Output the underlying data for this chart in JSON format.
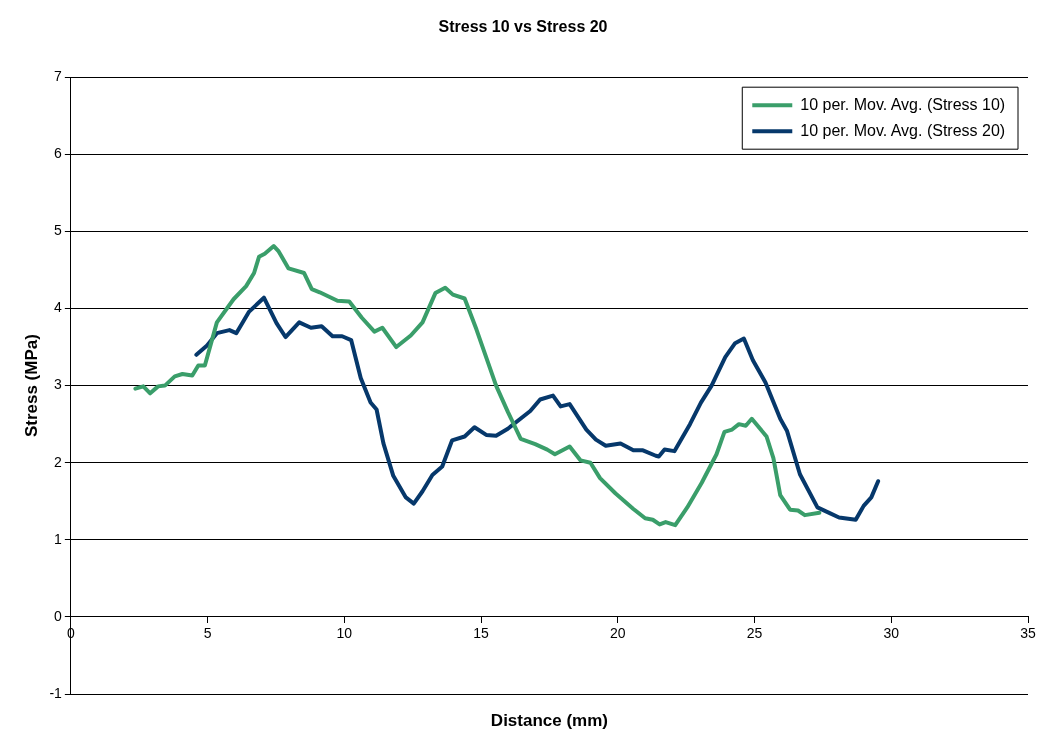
{
  "chart_data": {
    "type": "line",
    "title": "Stress 10 vs Stress 20",
    "xlabel": "Distance (mm)",
    "ylabel": "Stress (MPa)",
    "xlim": [
      0,
      35
    ],
    "xticks": [
      0,
      5,
      10,
      15,
      20,
      25,
      30,
      35
    ],
    "ylim": [
      -1,
      7
    ],
    "yticks": [
      -1,
      0,
      1,
      2,
      3,
      4,
      5,
      6,
      7
    ],
    "grid": "y",
    "legend": "top right",
    "marker": "none",
    "line_style": "solid",
    "series": [
      {
        "name": "10 per. Mov. Avg. (Stress 10)",
        "color": "#3a9e6a",
        "x": [
          2.36,
          2.65,
          2.9,
          3.19,
          3.44,
          3.8,
          4.08,
          4.44,
          4.66,
          4.9,
          5.34,
          5.95,
          6.41,
          6.7,
          6.88,
          7.09,
          7.42,
          7.6,
          7.96,
          8.53,
          8.81,
          9.1,
          9.75,
          10.18,
          10.64,
          11.1,
          11.39,
          11.9,
          12.43,
          12.86,
          13.33,
          13.69,
          13.97,
          14.4,
          14.83,
          15.55,
          15.98,
          16.45,
          16.98,
          17.42,
          17.7,
          18.24,
          18.64,
          19.0,
          19.35,
          19.92,
          20.57,
          21.0,
          21.28,
          21.53,
          21.75,
          22.1,
          22.54,
          23.07,
          23.61,
          23.9,
          24.18,
          24.43,
          24.68,
          24.9,
          25.44,
          25.69,
          25.94,
          26.3,
          26.59,
          26.84,
          27.37
        ],
        "values": [
          2.96,
          2.99,
          2.9,
          2.99,
          3.0,
          3.12,
          3.15,
          3.13,
          3.26,
          3.26,
          3.82,
          4.12,
          4.29,
          4.46,
          4.67,
          4.71,
          4.81,
          4.74,
          4.52,
          4.46,
          4.25,
          4.21,
          4.1,
          4.09,
          3.88,
          3.7,
          3.75,
          3.5,
          3.65,
          3.82,
          4.2,
          4.27,
          4.18,
          4.13,
          3.73,
          3.0,
          2.66,
          2.31,
          2.24,
          2.17,
          2.11,
          2.21,
          2.03,
          2.0,
          1.8,
          1.6,
          1.4,
          1.28,
          1.26,
          1.2,
          1.23,
          1.19,
          1.42,
          1.74,
          2.11,
          2.4,
          2.43,
          2.5,
          2.48,
          2.57,
          2.34,
          2.06,
          1.58,
          1.39,
          1.38,
          1.32,
          1.35
        ]
      },
      {
        "name": "10 per. Mov. Avg. (Stress 20)",
        "color": "#06386b",
        "x": [
          4.59,
          4.98,
          5.34,
          5.8,
          6.05,
          6.52,
          7.06,
          7.52,
          7.85,
          8.35,
          8.78,
          9.17,
          9.57,
          9.92,
          10.25,
          10.6,
          10.96,
          11.18,
          11.43,
          11.79,
          12.25,
          12.54,
          12.86,
          13.22,
          13.58,
          13.94,
          14.4,
          14.76,
          15.19,
          15.55,
          15.98,
          16.8,
          17.16,
          17.63,
          17.91,
          18.24,
          18.85,
          19.2,
          19.56,
          20.1,
          20.57,
          20.92,
          21.39,
          21.5,
          21.71,
          22.07,
          22.64,
          23.04,
          23.43,
          23.93,
          24.29,
          24.61,
          24.94,
          25.4,
          25.94,
          26.19,
          26.66,
          27.3,
          27.73,
          28.09,
          28.7,
          28.99,
          29.27,
          29.52
        ],
        "values": [
          3.4,
          3.52,
          3.68,
          3.72,
          3.68,
          3.96,
          4.14,
          3.81,
          3.63,
          3.82,
          3.75,
          3.77,
          3.64,
          3.64,
          3.59,
          3.1,
          2.78,
          2.69,
          2.25,
          1.83,
          1.55,
          1.47,
          1.63,
          1.84,
          1.95,
          2.29,
          2.34,
          2.46,
          2.36,
          2.35,
          2.44,
          2.67,
          2.82,
          2.87,
          2.73,
          2.76,
          2.43,
          2.3,
          2.22,
          2.25,
          2.16,
          2.16,
          2.09,
          2.08,
          2.17,
          2.15,
          2.5,
          2.78,
          3.0,
          3.37,
          3.55,
          3.61,
          3.33,
          3.04,
          2.57,
          2.41,
          1.85,
          1.42,
          1.35,
          1.29,
          1.26,
          1.44,
          1.55,
          1.76
        ]
      }
    ]
  }
}
